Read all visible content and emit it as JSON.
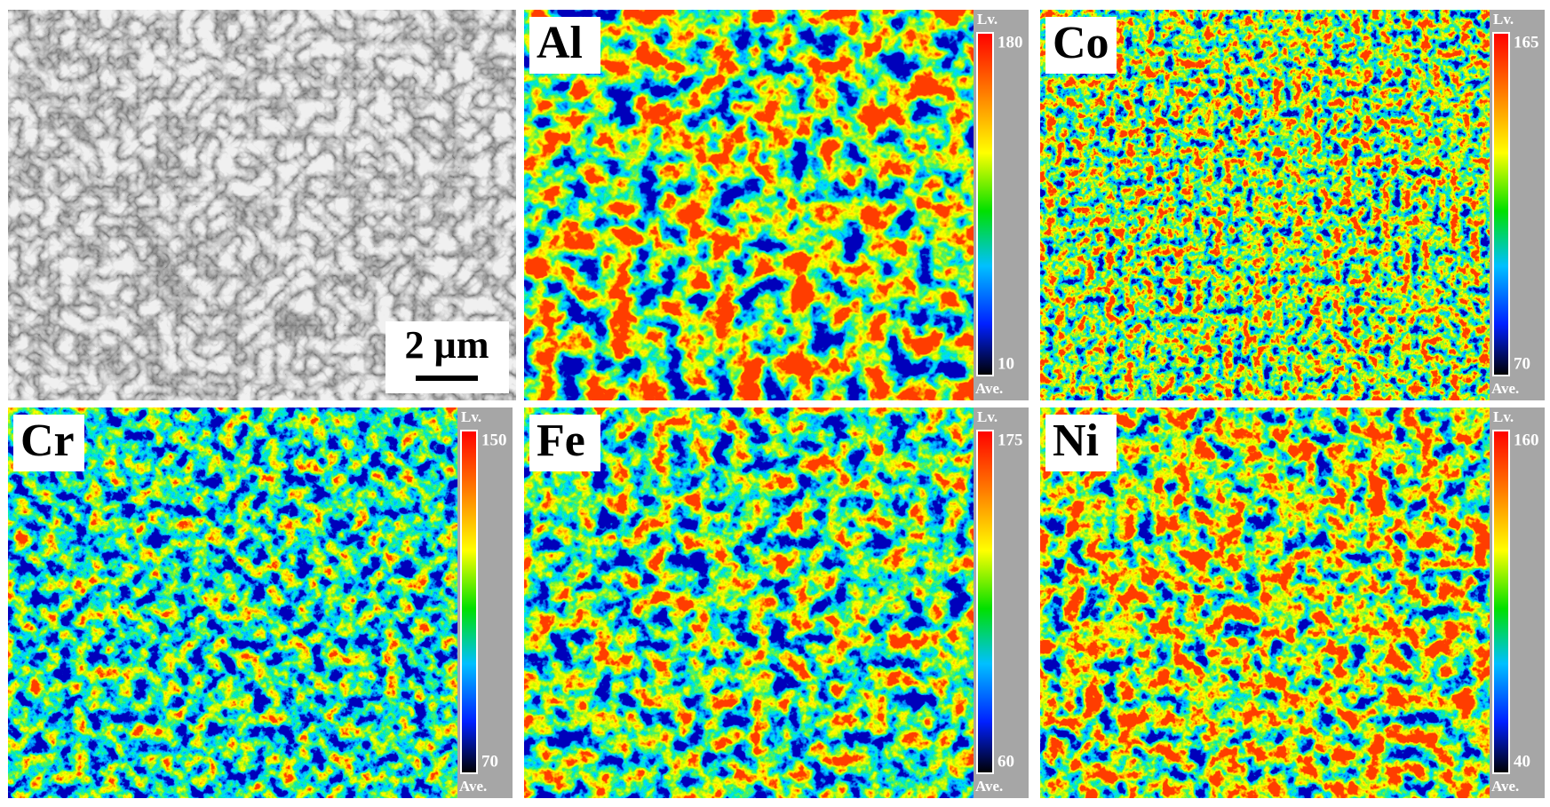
{
  "sem": {
    "scale_bar": "2 µm"
  },
  "maps": [
    {
      "element": "Al",
      "colorbar": {
        "top_label": "Lv.",
        "max": 180,
        "min": 10,
        "bottom_label": "Ave."
      }
    },
    {
      "element": "Co",
      "colorbar": {
        "top_label": "Lv.",
        "max": 165,
        "min": 70,
        "bottom_label": "Ave."
      }
    },
    {
      "element": "Cr",
      "colorbar": {
        "top_label": "Lv.",
        "max": 150,
        "min": 70,
        "bottom_label": "Ave."
      }
    },
    {
      "element": "Fe",
      "colorbar": {
        "top_label": "Lv.",
        "max": 175,
        "min": 60,
        "bottom_label": "Ave."
      }
    },
    {
      "element": "Ni",
      "colorbar": {
        "top_label": "Lv.",
        "max": 160,
        "min": 40,
        "bottom_label": "Ave."
      }
    }
  ]
}
